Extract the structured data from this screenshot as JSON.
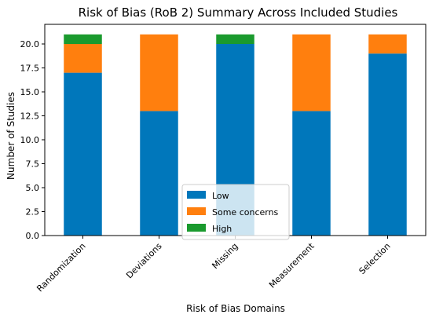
{
  "chart_data": {
    "type": "bar",
    "stacked": true,
    "title": "Risk of Bias (RoB 2) Summary Across Included Studies",
    "xlabel": "Risk of Bias Domains",
    "ylabel": "Number of Studies",
    "categories": [
      "Randomization",
      "Deviations",
      "Missing",
      "Measurement",
      "Selection"
    ],
    "series": [
      {
        "name": "Low",
        "color": "#0077bb",
        "values": [
          17,
          13,
          20,
          13,
          19
        ]
      },
      {
        "name": "Some concerns",
        "color": "#ff7f0e",
        "values": [
          3,
          8,
          0,
          8,
          2
        ]
      },
      {
        "name": "High",
        "color": "#1a9a2e",
        "values": [
          1,
          0,
          1,
          0,
          0
        ]
      }
    ],
    "ylim": [
      0,
      22.05
    ],
    "yticks": [
      "0.0",
      "2.5",
      "5.0",
      "7.5",
      "10.0",
      "12.5",
      "15.0",
      "17.5",
      "20.0"
    ],
    "grid": false,
    "legend_position": "lower center"
  }
}
